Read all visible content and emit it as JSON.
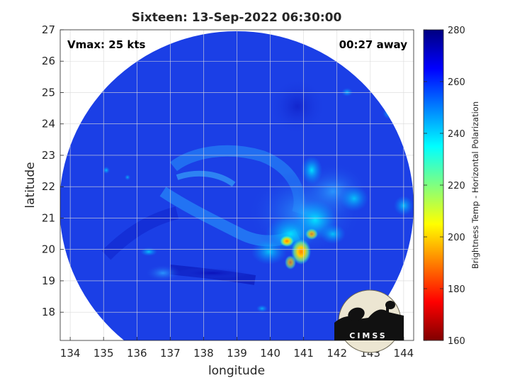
{
  "title": "Sixteen: 13-Sep-2022 06:30:00",
  "vmax_label": "Vmax: 25 kts",
  "time_label": "00:27 away",
  "xlabel": "longitude",
  "ylabel": "latitude",
  "x_ticks": [
    "134",
    "135",
    "136",
    "137",
    "138",
    "139",
    "140",
    "141",
    "142",
    "143",
    "144"
  ],
  "y_ticks": [
    "18",
    "19",
    "20",
    "21",
    "22",
    "23",
    "24",
    "25",
    "26",
    "27"
  ],
  "map_extent": {
    "lon": [
      133.7,
      144.3
    ],
    "lat": [
      17.1,
      27.0
    ]
  },
  "grid": true,
  "colorbar": {
    "label": "Brightness Temp - Horizontal Polarization",
    "ticks": [
      "160",
      "180",
      "200",
      "220",
      "240",
      "260",
      "280"
    ],
    "range": [
      160,
      280
    ],
    "colormap": "jet"
  },
  "logo": {
    "text": "CIMSS"
  },
  "colors": {
    "swath_background": "#1b3fe6",
    "outside_swath": "#ffffff"
  }
}
